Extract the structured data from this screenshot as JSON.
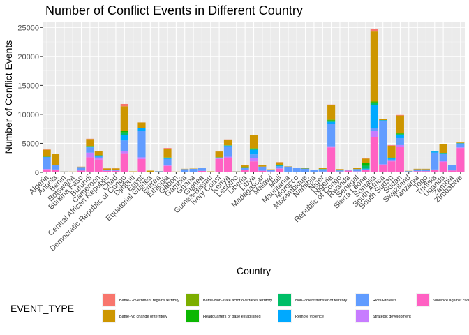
{
  "chart_data": {
    "type": "bar",
    "stacked": true,
    "title": "Number of Conflict Events in Different Country",
    "xlabel": "Country",
    "ylabel": "Number of Conflict Events",
    "ylim": [
      0,
      26000
    ],
    "yticks": [
      0,
      5000,
      10000,
      15000,
      20000,
      25000
    ],
    "grid": true,
    "legend": {
      "title": "EVENT_TYPE",
      "position": "bottom"
    },
    "categories": [
      "Algeria",
      "Angola",
      "Benin",
      "Botswana",
      "Burkina Faso",
      "Burundi",
      "Cameroon",
      "Central African Republic",
      "Chad",
      "Democratic Republic of Congo",
      "Djibouti",
      "Egypt",
      "Equatorial Guinea",
      "Eritrea",
      "Ethiopia",
      "Gabon",
      "Gambia",
      "Ghana",
      "Guinea",
      "Guinea-Bissau",
      "Ivory Coast",
      "Kenya",
      "Lesotho",
      "Liberia",
      "Libya",
      "Madagascar",
      "Malawi",
      "Mali",
      "Mauritania",
      "Morocco",
      "Mozambique",
      "Namibia",
      "Niger",
      "Nigeria",
      "Republic of Congo",
      "Rwanda",
      "Senegal",
      "Sierra Leone",
      "Somalia",
      "South Africa",
      "South Sudan",
      "Sudan",
      "Swaziland",
      "Tanzania",
      "Togo",
      "Tunisia",
      "Uganda",
      "Zambia",
      "Zimbabwe"
    ],
    "series": [
      {
        "name": "Battle-Government regains territory",
        "color": "#F8766D",
        "values": [
          50,
          20,
          0,
          0,
          10,
          50,
          20,
          20,
          20,
          400,
          0,
          10,
          0,
          10,
          100,
          0,
          0,
          0,
          0,
          0,
          20,
          20,
          0,
          20,
          100,
          0,
          0,
          30,
          0,
          0,
          10,
          0,
          10,
          100,
          10,
          0,
          10,
          50,
          500,
          10,
          100,
          100,
          0,
          0,
          0,
          0,
          20,
          0,
          0
        ]
      },
      {
        "name": "Battle-No change of territory",
        "color": "#CD9600",
        "values": [
          1200,
          1900,
          20,
          20,
          50,
          1200,
          700,
          200,
          250,
          4200,
          100,
          1000,
          250,
          20,
          1500,
          20,
          50,
          50,
          50,
          50,
          1000,
          1000,
          30,
          300,
          2200,
          200,
          100,
          500,
          50,
          50,
          100,
          10,
          150,
          2500,
          200,
          50,
          200,
          700,
          12000,
          200,
          2000,
          3000,
          50,
          100,
          100,
          100,
          1500,
          50,
          100
        ]
      },
      {
        "name": "Battle-Non-state actor overtakes territory",
        "color": "#7CAE00",
        "values": [
          0,
          0,
          0,
          0,
          0,
          20,
          0,
          10,
          10,
          100,
          0,
          0,
          0,
          0,
          50,
          0,
          0,
          0,
          0,
          0,
          0,
          0,
          0,
          0,
          100,
          0,
          0,
          20,
          0,
          0,
          0,
          0,
          10,
          100,
          0,
          0,
          0,
          20,
          200,
          0,
          50,
          100,
          0,
          0,
          0,
          0,
          0,
          0,
          0
        ]
      },
      {
        "name": "Headquarters or base established",
        "color": "#0CB702",
        "values": [
          0,
          0,
          0,
          0,
          0,
          30,
          0,
          20,
          10,
          200,
          0,
          0,
          0,
          0,
          50,
          0,
          0,
          0,
          0,
          0,
          0,
          20,
          0,
          0,
          50,
          0,
          0,
          20,
          0,
          0,
          0,
          0,
          10,
          100,
          10,
          0,
          0,
          500,
          100,
          0,
          30,
          100,
          0,
          0,
          0,
          0,
          20,
          0,
          0
        ]
      },
      {
        "name": "Non-violent transfer of territory",
        "color": "#00BE67",
        "values": [
          50,
          20,
          0,
          0,
          0,
          100,
          50,
          50,
          20,
          400,
          0,
          10,
          0,
          0,
          100,
          0,
          0,
          0,
          0,
          0,
          50,
          50,
          0,
          50,
          150,
          0,
          0,
          50,
          0,
          0,
          10,
          0,
          20,
          200,
          20,
          0,
          10,
          500,
          400,
          20,
          100,
          200,
          0,
          0,
          0,
          10,
          50,
          0,
          50
        ]
      },
      {
        "name": "Remote violence",
        "color": "#00A9FF",
        "values": [
          50,
          50,
          0,
          0,
          10,
          100,
          200,
          50,
          50,
          1000,
          0,
          500,
          0,
          20,
          100,
          0,
          0,
          0,
          0,
          0,
          50,
          100,
          0,
          0,
          800,
          0,
          0,
          100,
          0,
          0,
          50,
          0,
          50,
          300,
          10,
          0,
          20,
          100,
          4000,
          100,
          200,
          500,
          0,
          0,
          0,
          200,
          100,
          0,
          0
        ]
      },
      {
        "name": "Riots/Protests",
        "color": "#619CFF",
        "values": [
          2000,
          700,
          100,
          100,
          600,
          900,
          300,
          50,
          50,
          1800,
          50,
          4500,
          30,
          50,
          1000,
          100,
          450,
          500,
          450,
          60,
          100,
          1800,
          100,
          400,
          600,
          700,
          250,
          350,
          900,
          650,
          500,
          350,
          350,
          3900,
          150,
          100,
          350,
          100,
          500,
          7500,
          100,
          1200,
          100,
          300,
          300,
          2900,
          1200,
          900,
          700
        ]
      },
      {
        "name": "Strategic development",
        "color": "#C77CFF",
        "values": [
          100,
          100,
          0,
          0,
          20,
          800,
          200,
          50,
          50,
          400,
          0,
          300,
          0,
          20,
          200,
          0,
          20,
          20,
          20,
          10,
          100,
          200,
          10,
          50,
          600,
          50,
          20,
          100,
          50,
          50,
          50,
          20,
          50,
          200,
          20,
          20,
          50,
          50,
          1000,
          100,
          200,
          300,
          20,
          20,
          20,
          100,
          200,
          50,
          100
        ]
      },
      {
        "name": "Violence against civilians",
        "color": "#FF61C3",
        "values": [
          500,
          400,
          50,
          20,
          300,
          2600,
          2200,
          250,
          250,
          3300,
          20,
          2300,
          20,
          100,
          1100,
          20,
          100,
          100,
          250,
          50,
          2300,
          2500,
          50,
          400,
          1900,
          250,
          150,
          600,
          50,
          50,
          50,
          50,
          100,
          4300,
          150,
          300,
          150,
          400,
          6100,
          1300,
          1900,
          4400,
          100,
          200,
          200,
          400,
          1800,
          300,
          4200
        ]
      }
    ]
  }
}
